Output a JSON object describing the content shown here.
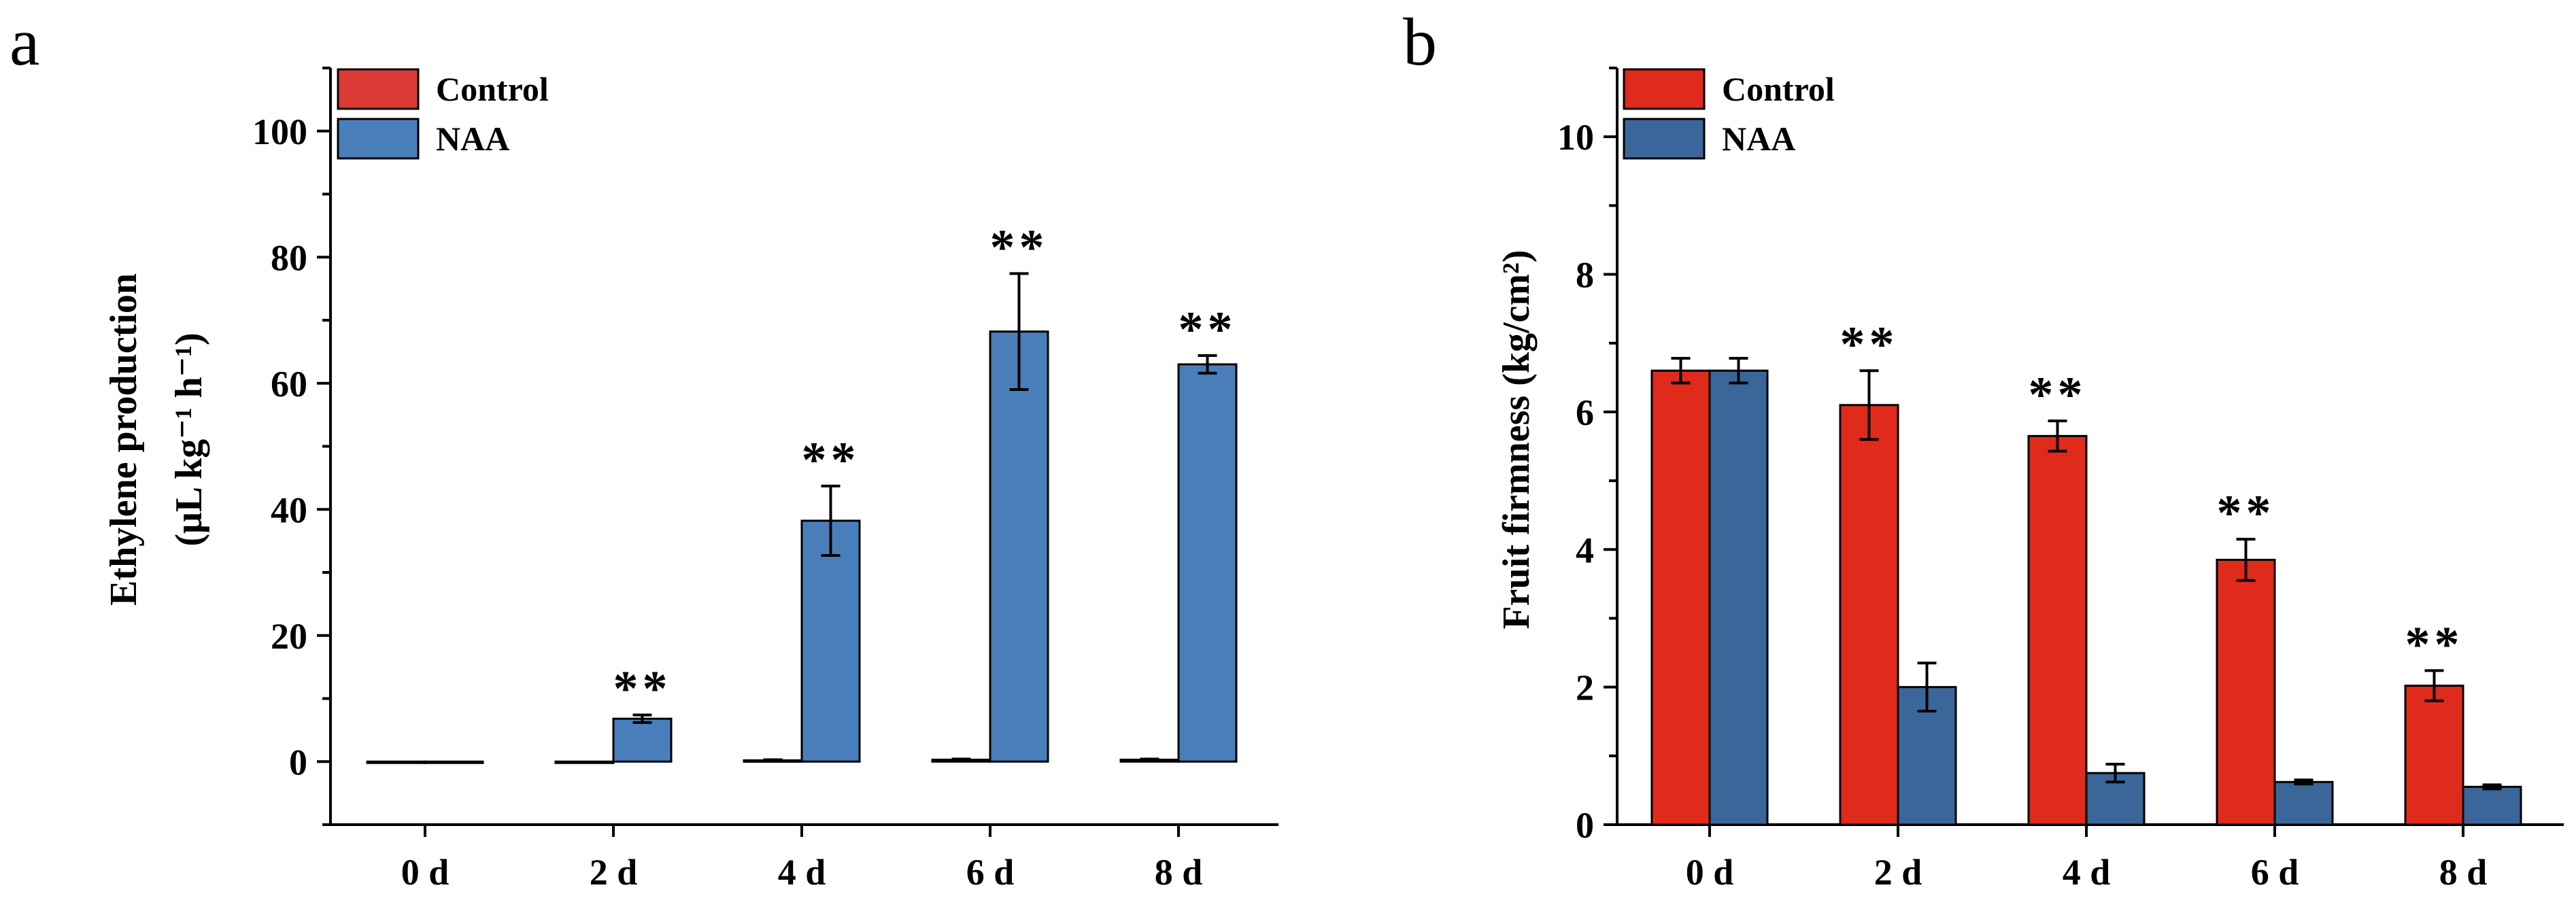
{
  "chart_data": [
    {
      "panel": "a",
      "type": "bar",
      "categories": [
        "0 d",
        "2 d",
        "4 d",
        "6 d",
        "8 d"
      ],
      "ylabel_line1": "Ethylene production",
      "ylabel_line2": "(μL  kg⁻¹ h⁻¹)",
      "ylim": [
        -10,
        110
      ],
      "yticks": [
        0,
        20,
        40,
        60,
        80,
        100
      ],
      "legend_position": "top-left",
      "significance_marker": "**",
      "series": [
        {
          "name": "Control",
          "color": "#dc3a35",
          "values": [
            0,
            0,
            0.2,
            0.3,
            0.3
          ],
          "errors": [
            0,
            0,
            0.1,
            0.1,
            0.1
          ]
        },
        {
          "name": "NAA",
          "color": "#4a7ebb",
          "values": [
            0,
            6.8,
            38.2,
            68.2,
            63.0
          ],
          "errors": [
            0,
            0.6,
            5.5,
            9.2,
            1.4
          ],
          "significant": [
            false,
            true,
            true,
            true,
            true
          ]
        }
      ]
    },
    {
      "panel": "b",
      "type": "bar",
      "categories": [
        "0 d",
        "2 d",
        "4 d",
        "6 d",
        "8 d"
      ],
      "ylabel": "Fruit firmness (kg/cm²)",
      "ylim": [
        0,
        11
      ],
      "yticks": [
        0,
        2,
        4,
        6,
        8,
        10
      ],
      "legend_position": "top-left",
      "significance_marker": "**",
      "series": [
        {
          "name": "Control",
          "color": "#e02a1c",
          "values": [
            6.6,
            6.1,
            5.65,
            3.85,
            2.02
          ],
          "errors": [
            0.18,
            0.5,
            0.22,
            0.3,
            0.22
          ],
          "significant": [
            false,
            true,
            true,
            true,
            true
          ]
        },
        {
          "name": "NAA",
          "color": "#3b6699",
          "values": [
            6.6,
            2.0,
            0.75,
            0.62,
            0.55
          ],
          "errors": [
            0.18,
            0.35,
            0.13,
            0.03,
            0.03
          ]
        }
      ]
    }
  ]
}
